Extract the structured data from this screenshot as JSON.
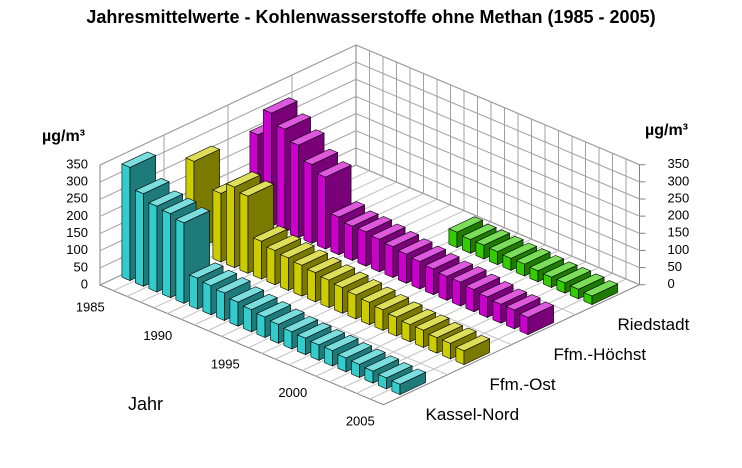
{
  "chart_data": {
    "type": "bar3d",
    "title": "Jahresmittelwerte - Kohlenwasserstoffe ohne Methan (1985 - 2005)",
    "xlabel": "Jahr",
    "ylabel": "µg/m³",
    "y2label": "µg/m³",
    "categories": [
      "1985",
      null,
      null,
      null,
      null,
      "1990",
      null,
      null,
      null,
      null,
      "1995",
      null,
      null,
      null,
      null,
      "2000",
      null,
      null,
      null,
      null,
      "2005"
    ],
    "series": [
      {
        "name": "Kassel-Nord",
        "color": "#33cccc",
        "values": [
          330,
          270,
          250,
          245,
          235,
          90,
          85,
          80,
          70,
          65,
          60,
          55,
          50,
          48,
          45,
          45,
          40,
          38,
          35,
          32,
          30
        ]
      },
      {
        "name": "Ffm.-Ost",
        "color": "#cccc00",
        "values": [
          260,
          null,
          200,
          235,
          225,
          110,
          100,
          95,
          90,
          85,
          80,
          75,
          70,
          65,
          60,
          55,
          50,
          50,
          45,
          45,
          40
        ]
      },
      {
        "name": "Ffm.-Höchst",
        "color": "#cc00cc",
        "values": [
          250,
          330,
          300,
          270,
          230,
          210,
          110,
          100,
          100,
          95,
          90,
          85,
          80,
          75,
          70,
          70,
          65,
          60,
          55,
          55,
          50
        ]
      },
      {
        "name": "Riedstadt",
        "color": "#33cc00",
        "values": [
          null,
          null,
          null,
          null,
          null,
          null,
          null,
          null,
          null,
          null,
          45,
          40,
          40,
          38,
          35,
          35,
          32,
          30,
          30,
          28,
          25
        ]
      }
    ],
    "ylim": [
      0,
      350
    ],
    "yticks": [
      0,
      50,
      100,
      150,
      200,
      250,
      300,
      350
    ],
    "y2lim": [
      0,
      350
    ],
    "y2ticks": [
      0,
      50,
      100,
      150,
      200,
      250,
      300,
      350
    ],
    "grid": true
  }
}
